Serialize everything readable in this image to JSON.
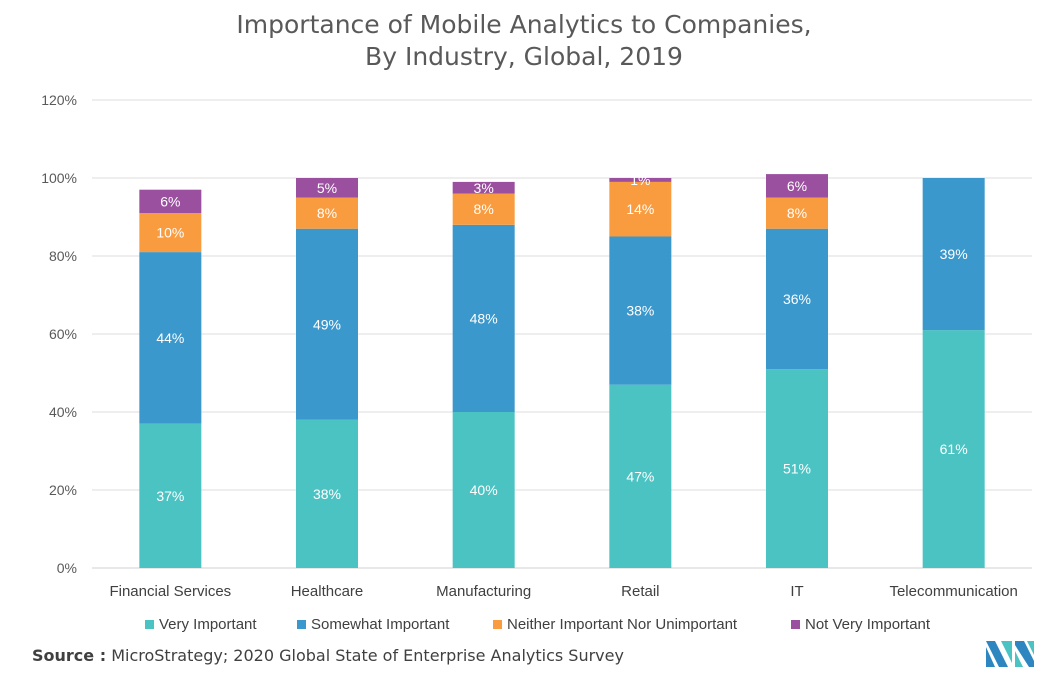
{
  "chart_data": {
    "type": "bar",
    "stacked": true,
    "title": [
      "Importance of Mobile Analytics to Companies,",
      "By Industry, Global, 2019"
    ],
    "xlabel": "",
    "ylabel": "",
    "ylim": [
      0,
      120
    ],
    "yticks": [
      "0%",
      "20%",
      "40%",
      "60%",
      "80%",
      "100%",
      "120%"
    ],
    "ytick_values": [
      0,
      20,
      40,
      60,
      80,
      100,
      120
    ],
    "grid": true,
    "legend_position": "bottom",
    "categories": [
      "Financial Services",
      "Healthcare",
      "Manufacturing",
      "Retail",
      "IT",
      "Telecommunication"
    ],
    "series": [
      {
        "name": "Very Important",
        "color": "#4cc3c3",
        "values": [
          37,
          38,
          40,
          47,
          51,
          61
        ]
      },
      {
        "name": "Somewhat Important",
        "color": "#3a98cc",
        "values": [
          44,
          49,
          48,
          38,
          36,
          39
        ]
      },
      {
        "name": "Neither Important Nor Unimportant",
        "color": "#f99c40",
        "values": [
          10,
          8,
          8,
          14,
          8,
          0
        ]
      },
      {
        "name": "Not Very Important",
        "color": "#9b4f9f",
        "values": [
          6,
          5,
          3,
          1,
          6,
          0
        ]
      }
    ],
    "value_suffix": "%"
  },
  "source": {
    "label": "Source :",
    "text": " MicroStrategy; 2020 Global State of Enterprise Analytics Survey"
  },
  "logo": {
    "name": "mordor-intelligence-logo"
  }
}
